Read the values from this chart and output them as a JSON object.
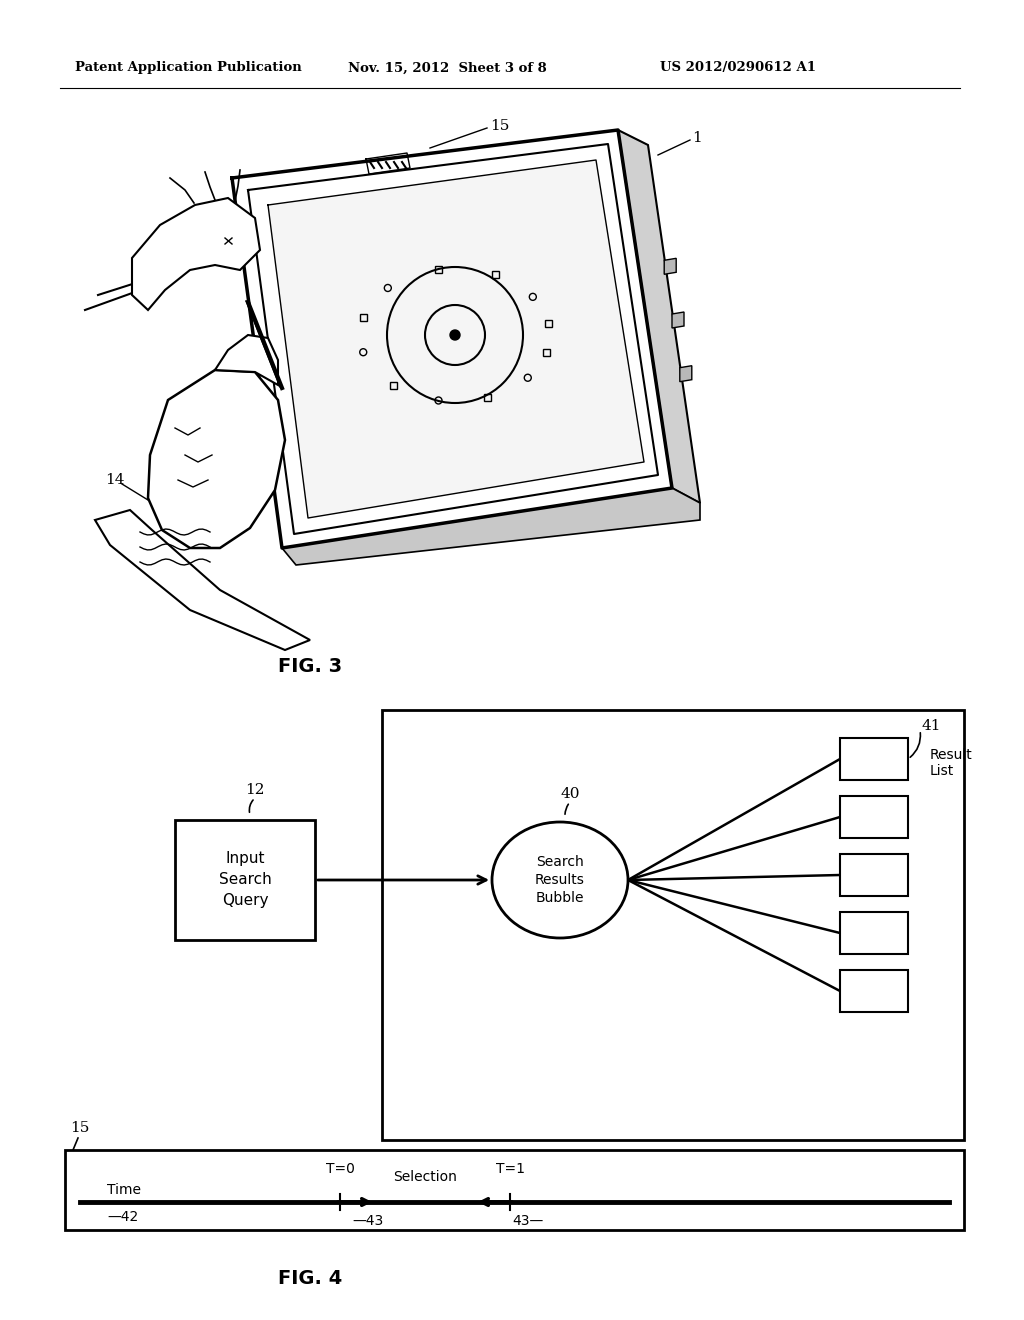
{
  "bg_color": "#ffffff",
  "header_left": "Patent Application Publication",
  "header_mid": "Nov. 15, 2012  Sheet 3 of 8",
  "header_right": "US 2012/0290612 A1",
  "fig3_label": "FIG. 3",
  "fig4_label": "FIG. 4",
  "label_15_tablet": "15",
  "label_1_tablet": "1",
  "label_14_tablet": "14",
  "label_12": "12",
  "label_40": "40",
  "label_41": "41",
  "label_15_timeline": "15",
  "label_42": "42",
  "label_43a": "43",
  "label_43b": "43",
  "box_text": "Input\nSearch\nQuery",
  "bubble_text": "Search\nResults\nBubble",
  "result_list_text": "Result\nList",
  "timeline_time": "Time",
  "timeline_selection": "Selection",
  "timeline_t0": "T=0",
  "timeline_t1": "T=1"
}
